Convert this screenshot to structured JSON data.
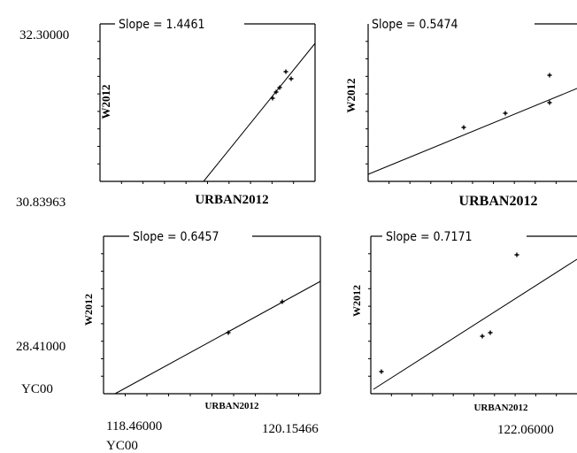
{
  "figure_labels": {
    "y_top": "32.30000",
    "y_mid": "30.83963",
    "y_low": "28.41000",
    "y_var": "YC00",
    "x_left": "118.46000",
    "x_mid": "120.15466",
    "x_right": "122.06000",
    "x_var": "YC00"
  },
  "chart_data": [
    {
      "type": "scatter",
      "title": "Slope = 1.4461",
      "xlabel": "URBAN2012",
      "ylabel": "W2012",
      "slope": 1.4461,
      "points": [
        [
          0.76,
          0.85
        ],
        [
          0.79,
          0.9
        ],
        [
          0.83,
          0.95
        ],
        [
          0.87,
          1.05
        ],
        [
          0.9,
          1.15
        ]
      ]
    },
    {
      "type": "scatter",
      "title": "Slope = 0.5474",
      "xlabel": "URBAN2012",
      "ylabel": "W2012",
      "slope": 0.5474,
      "points": [
        [
          0.5,
          0.42
        ],
        [
          0.7,
          0.55
        ],
        [
          0.93,
          0.6
        ],
        [
          0.93,
          0.95
        ]
      ]
    },
    {
      "type": "scatter",
      "title": "Slope = 0.6457",
      "xlabel": "URBAN2012",
      "ylabel": "W2012",
      "slope": 0.6457,
      "points": [
        [
          0.55,
          0.35
        ],
        [
          0.83,
          0.58
        ]
      ]
    },
    {
      "type": "scatter",
      "title": "Slope = 0.7171",
      "xlabel": "URBAN2012",
      "ylabel": "W2012",
      "slope": 0.7171,
      "points": [
        [
          0.05,
          0.1
        ],
        [
          0.55,
          0.42
        ],
        [
          0.58,
          0.44
        ],
        [
          0.72,
          1.0
        ]
      ]
    }
  ]
}
